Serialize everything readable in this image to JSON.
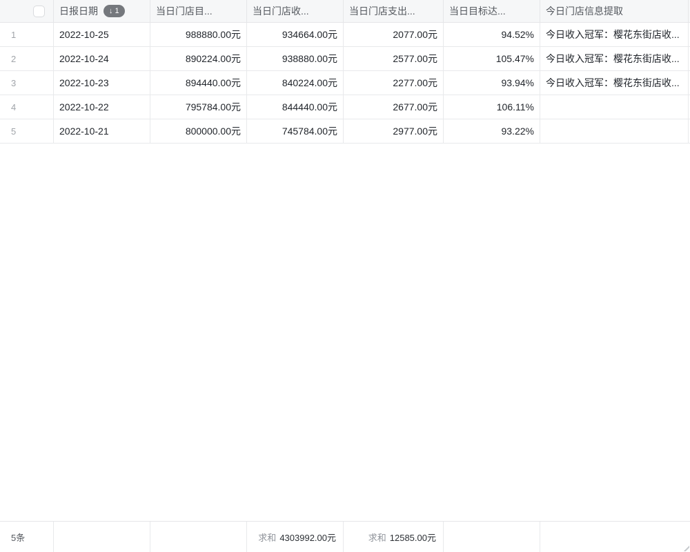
{
  "header": {
    "date_label": "日报日期",
    "sort_arrow": "↓",
    "sort_count": "1",
    "target_label": "当日门店目...",
    "income_label": "当日门店收...",
    "expense_label": "当日门店支出...",
    "rate_label": "当日目标达...",
    "info_label": "今日门店信息提取"
  },
  "rows": [
    {
      "num": "1",
      "date": "2022-10-25",
      "target": "988880.00元",
      "income": "934664.00元",
      "expense": "2077.00元",
      "rate": "94.52%",
      "info": "今日收入冠军：樱花东街店收..."
    },
    {
      "num": "2",
      "date": "2022-10-24",
      "target": "890224.00元",
      "income": "938880.00元",
      "expense": "2577.00元",
      "rate": "105.47%",
      "info": "今日收入冠军：樱花东街店收..."
    },
    {
      "num": "3",
      "date": "2022-10-23",
      "target": "894440.00元",
      "income": "840224.00元",
      "expense": "2277.00元",
      "rate": "93.94%",
      "info": "今日收入冠军：樱花东街店收..."
    },
    {
      "num": "4",
      "date": "2022-10-22",
      "target": "795784.00元",
      "income": "844440.00元",
      "expense": "2677.00元",
      "rate": "106.11%",
      "info": ""
    },
    {
      "num": "5",
      "date": "2022-10-21",
      "target": "800000.00元",
      "income": "745784.00元",
      "expense": "2977.00元",
      "rate": "93.22%",
      "info": ""
    }
  ],
  "footer": {
    "count": "5条",
    "income_sum_label": "求和",
    "income_sum_value": "4303992.00元",
    "expense_sum_label": "求和",
    "expense_sum_value": "12585.00元"
  },
  "colors": {
    "header_bg": "#f6f7f8",
    "border": "#e5e6e8",
    "badge_bg": "#75787d",
    "body_text": "#1f2329",
    "header_text": "#54585e",
    "row_number_text": "#a0a4a9",
    "sum_label_text": "#8f939a"
  }
}
